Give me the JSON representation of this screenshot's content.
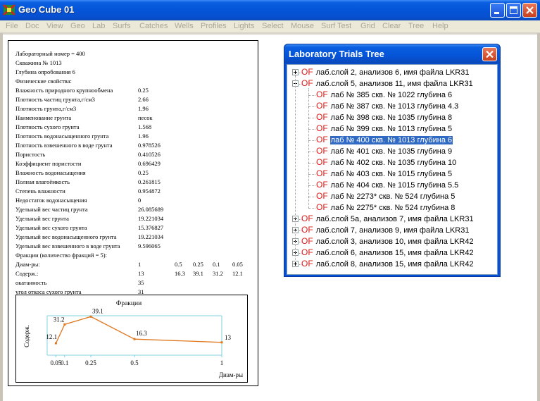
{
  "window": {
    "title": "Geo Cube 01"
  },
  "menu": [
    "File",
    "Doc",
    "View",
    "Geo",
    "Lab",
    "Surfs",
    "Catches",
    "Wells",
    "Profiles",
    "Lights",
    "Select",
    "Mouse",
    "Surf Test",
    "Grid",
    "Clear",
    "Tree",
    "Help"
  ],
  "props": {
    "lines": [
      "Лабораторный номер = 400",
      "Скважина № 1013",
      "Глубина опробования 6",
      "Физические свойства:"
    ],
    "rows": [
      {
        "label": "Влажность природного крупнообмена",
        "value": "0.25"
      },
      {
        "label": "Плотность частиц грунта,г/см3",
        "value": "2.66"
      },
      {
        "label": "Плотность грунта,г/см3",
        "value": "1.96"
      },
      {
        "label": "Наименование грунта",
        "value": "песок"
      },
      {
        "label": "Плотность сухого грунта",
        "value": "1.568"
      },
      {
        "label": "Плотность водонасыщенного грунта",
        "value": "1.96"
      },
      {
        "label": "Плотность взвешенного в воде грунта",
        "value": "0.978526"
      },
      {
        "label": "Пористость",
        "value": "0.410526"
      },
      {
        "label": "Коэффициент пористости",
        "value": "0.696429"
      },
      {
        "label": "Влажность водонасыщения",
        "value": "0.25"
      },
      {
        "label": "Полная влагоёмкость",
        "value": "0.261815"
      },
      {
        "label": "Степень влажности",
        "value": "0.954872"
      },
      {
        "label": "Недостаток водонасыщения",
        "value": "0"
      },
      {
        "label": "Удельный вес частиц грунта",
        "value": "26.085689"
      },
      {
        "label": "Удельный вес грунта",
        "value": "19.221034"
      },
      {
        "label": "Удельный вес сухого грунта",
        "value": "15.376827"
      },
      {
        "label": "Удельный вес водонасыщенного грунта",
        "value": "19.221034"
      },
      {
        "label": "Удельный вес взвешенного в воде грунта",
        "value": "9.596065"
      }
    ],
    "fractions_header": "Фракции (количество фракций = 5):",
    "diam_label": "Диам-ры:",
    "diam_values": [
      "1",
      "0.5",
      "0.25",
      "0.1",
      "0.05"
    ],
    "content_label": "Содерж.:",
    "content_values": [
      "13",
      "16.3",
      "39.1",
      "31.2",
      "12.1"
    ],
    "extra_rows": [
      {
        "label": "окатанность",
        "value": "35"
      },
      {
        "label": "угол откоса сухого грунта",
        "value": "31"
      }
    ]
  },
  "chart_data": {
    "type": "line",
    "title": "Фракции",
    "xlabel": "Диам-ры",
    "ylabel": "Содерж.",
    "x": [
      0.05,
      0.1,
      0.25,
      0.5,
      1
    ],
    "y": [
      12.1,
      31.2,
      39.1,
      16.3,
      13
    ],
    "data_labels": [
      "12.1",
      "31.2",
      "39.1",
      "16.3",
      "13"
    ],
    "x_tick_labels": [
      "0.05",
      "0.1",
      "0.25",
      "0.5",
      "1"
    ],
    "xlim": [
      0,
      1
    ],
    "ylim": [
      0,
      40
    ],
    "line_color": "#e07820",
    "grid": false
  },
  "tree": {
    "title": "Laboratory Trials Tree",
    "nodes": [
      {
        "label": "лаб.слой 2, анализов 6, имя файла LKR31",
        "level": 0,
        "expanded": false,
        "selected": false
      },
      {
        "label": "лаб.слой 5, анализов 11, имя файла LKR31",
        "level": 0,
        "expanded": true,
        "selected": false
      },
      {
        "label": "лаб № 385 скв. № 1022 глубина 6",
        "level": 1,
        "selected": false
      },
      {
        "label": "лаб № 387 скв. № 1013 глубина 4.3",
        "level": 1,
        "selected": false
      },
      {
        "label": "лаб № 398 скв. № 1035 глубина 8",
        "level": 1,
        "selected": false
      },
      {
        "label": "лаб № 399 скв. № 1013 глубина 5",
        "level": 1,
        "selected": false
      },
      {
        "label": "лаб № 400 скв. № 1013 глубина 6",
        "level": 1,
        "selected": true
      },
      {
        "label": "лаб № 401 скв. № 1035 глубина 9",
        "level": 1,
        "selected": false
      },
      {
        "label": "лаб № 402 скв. № 1035 глубина 10",
        "level": 1,
        "selected": false
      },
      {
        "label": "лаб № 403 скв. № 1015 глубина 5",
        "level": 1,
        "selected": false
      },
      {
        "label": "лаб № 404 скв. № 1015 глубина 5.5",
        "level": 1,
        "selected": false
      },
      {
        "label": "лаб № 2273* скв. № 524 глубина 5",
        "level": 1,
        "selected": false
      },
      {
        "label": "лаб № 2275* скв. № 524 глубина 8",
        "level": 1,
        "selected": false
      },
      {
        "label": "лаб.слой 5а, анализов 7, имя файла LKR31",
        "level": 0,
        "expanded": false,
        "selected": false
      },
      {
        "label": "лаб.слой 7, анализов 9, имя файла LKR31",
        "level": 0,
        "expanded": false,
        "selected": false
      },
      {
        "label": "лаб.слой 3, анализов 10, имя файла LKR42",
        "level": 0,
        "expanded": false,
        "selected": false
      },
      {
        "label": "лаб.слой 6, анализов 15, имя файла LKR42",
        "level": 0,
        "expanded": false,
        "selected": false
      },
      {
        "label": "лаб.слой 8, анализов 15, имя файла LKR42",
        "level": 0,
        "expanded": false,
        "selected": false
      }
    ],
    "node_prefix": "OF"
  },
  "colors": {
    "titlebar": "#0554d8",
    "menubar": "#ece9d8",
    "menu_text_disabled": "#a9a696",
    "selection": "#316ac5",
    "of_prefix": "#e11a1a",
    "chart_line": "#e07820",
    "chart_axes": "#7fd0e0"
  },
  "icons": {
    "app": "geo-cube-app-icon",
    "minimize": "minimize-icon",
    "maximize": "maximize-icon",
    "close": "close-icon"
  }
}
